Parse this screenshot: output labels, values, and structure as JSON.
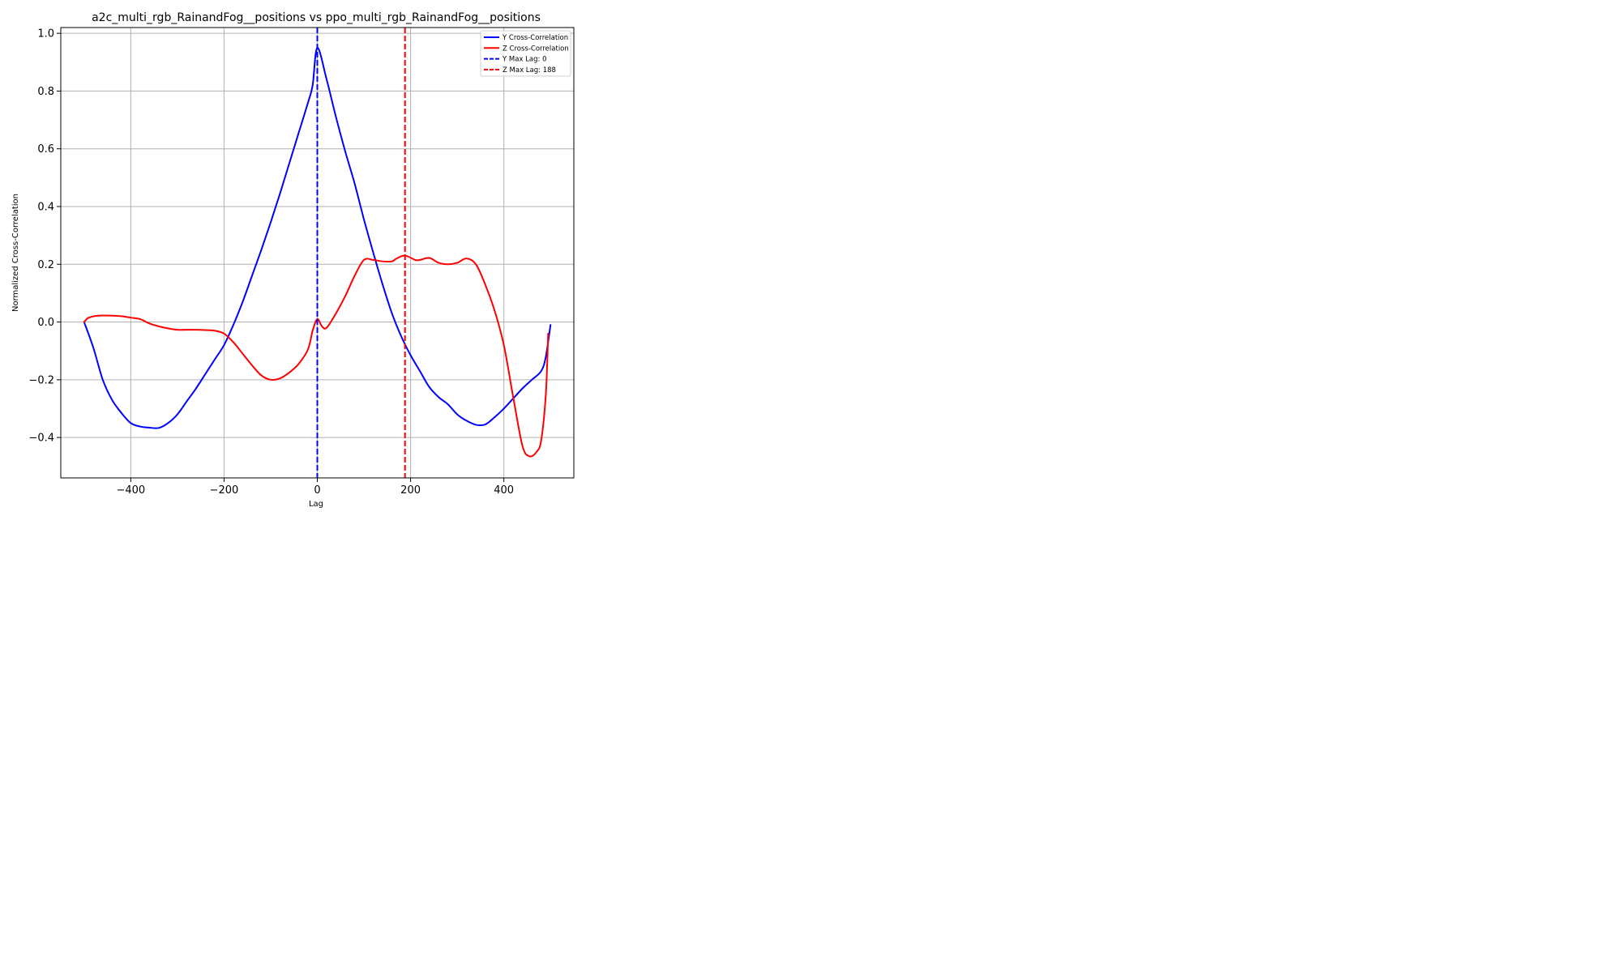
{
  "chart_data": {
    "type": "line",
    "title": "a2c_multi_rgb_RainandFog__positions vs ppo_multi_rgb_RainandFog__positions",
    "xlabel": "Lag",
    "ylabel": "Normalized Cross-Correlation",
    "xlim": [
      -550,
      550
    ],
    "ylim": [
      -0.54,
      1.02
    ],
    "xticks": [
      -400,
      -200,
      0,
      200,
      400
    ],
    "xtick_labels": [
      "−400",
      "−200",
      "0",
      "200",
      "400"
    ],
    "yticks": [
      -0.4,
      -0.2,
      0.0,
      0.2,
      0.4,
      0.6,
      0.8,
      1.0
    ],
    "ytick_labels": [
      "−0.4",
      "−0.2",
      "0.0",
      "0.2",
      "0.4",
      "0.6",
      "0.8",
      "1.0"
    ],
    "grid": true,
    "legend_position": "top-right",
    "series": [
      {
        "name": "Y Cross-Correlation",
        "color": "#0000ff",
        "style": "solid",
        "points": [
          [
            -500,
            0.0
          ],
          [
            -480,
            -0.09
          ],
          [
            -460,
            -0.2
          ],
          [
            -440,
            -0.27
          ],
          [
            -420,
            -0.315
          ],
          [
            -400,
            -0.35
          ],
          [
            -380,
            -0.362
          ],
          [
            -360,
            -0.366
          ],
          [
            -340,
            -0.367
          ],
          [
            -320,
            -0.35
          ],
          [
            -300,
            -0.32
          ],
          [
            -280,
            -0.275
          ],
          [
            -260,
            -0.23
          ],
          [
            -240,
            -0.18
          ],
          [
            -220,
            -0.13
          ],
          [
            -200,
            -0.08
          ],
          [
            -180,
            -0.01
          ],
          [
            -160,
            0.07
          ],
          [
            -140,
            0.16
          ],
          [
            -120,
            0.25
          ],
          [
            -100,
            0.345
          ],
          [
            -80,
            0.445
          ],
          [
            -60,
            0.55
          ],
          [
            -40,
            0.655
          ],
          [
            -20,
            0.76
          ],
          [
            -10,
            0.82
          ],
          [
            0,
            0.95
          ],
          [
            20,
            0.84
          ],
          [
            40,
            0.71
          ],
          [
            60,
            0.59
          ],
          [
            80,
            0.48
          ],
          [
            100,
            0.355
          ],
          [
            120,
            0.24
          ],
          [
            140,
            0.13
          ],
          [
            160,
            0.03
          ],
          [
            180,
            -0.05
          ],
          [
            200,
            -0.115
          ],
          [
            220,
            -0.17
          ],
          [
            240,
            -0.225
          ],
          [
            260,
            -0.26
          ],
          [
            280,
            -0.285
          ],
          [
            300,
            -0.32
          ],
          [
            320,
            -0.342
          ],
          [
            340,
            -0.356
          ],
          [
            360,
            -0.355
          ],
          [
            380,
            -0.33
          ],
          [
            400,
            -0.3
          ],
          [
            420,
            -0.265
          ],
          [
            440,
            -0.23
          ],
          [
            460,
            -0.2
          ],
          [
            480,
            -0.17
          ],
          [
            490,
            -0.12
          ],
          [
            500,
            -0.01
          ]
        ]
      },
      {
        "name": "Z Cross-Correlation",
        "color": "#ff0000",
        "style": "solid",
        "points": [
          [
            -500,
            0.0
          ],
          [
            -490,
            0.015
          ],
          [
            -470,
            0.022
          ],
          [
            -440,
            0.022
          ],
          [
            -420,
            0.02
          ],
          [
            -400,
            0.015
          ],
          [
            -380,
            0.01
          ],
          [
            -360,
            -0.005
          ],
          [
            -340,
            -0.015
          ],
          [
            -320,
            -0.022
          ],
          [
            -300,
            -0.027
          ],
          [
            -280,
            -0.027
          ],
          [
            -260,
            -0.027
          ],
          [
            -240,
            -0.028
          ],
          [
            -220,
            -0.03
          ],
          [
            -200,
            -0.04
          ],
          [
            -180,
            -0.07
          ],
          [
            -160,
            -0.11
          ],
          [
            -140,
            -0.15
          ],
          [
            -120,
            -0.185
          ],
          [
            -100,
            -0.2
          ],
          [
            -80,
            -0.195
          ],
          [
            -60,
            -0.175
          ],
          [
            -40,
            -0.145
          ],
          [
            -20,
            -0.095
          ],
          [
            -10,
            -0.03
          ],
          [
            0,
            0.01
          ],
          [
            10,
            -0.015
          ],
          [
            20,
            -0.02
          ],
          [
            40,
            0.03
          ],
          [
            60,
            0.09
          ],
          [
            80,
            0.16
          ],
          [
            100,
            0.215
          ],
          [
            120,
            0.215
          ],
          [
            140,
            0.21
          ],
          [
            160,
            0.21
          ],
          [
            170,
            0.22
          ],
          [
            188,
            0.23
          ],
          [
            210,
            0.215
          ],
          [
            220,
            0.215
          ],
          [
            240,
            0.222
          ],
          [
            260,
            0.205
          ],
          [
            280,
            0.2
          ],
          [
            300,
            0.205
          ],
          [
            320,
            0.22
          ],
          [
            340,
            0.2
          ],
          [
            360,
            0.13
          ],
          [
            380,
            0.04
          ],
          [
            400,
            -0.08
          ],
          [
            420,
            -0.26
          ],
          [
            440,
            -0.43
          ],
          [
            455,
            -0.465
          ],
          [
            470,
            -0.45
          ],
          [
            480,
            -0.41
          ],
          [
            490,
            -0.25
          ],
          [
            495,
            -0.04
          ]
        ]
      },
      {
        "name": "Y Max Lag: 0",
        "color": "#0000ff",
        "style": "dashed",
        "vline": 0
      },
      {
        "name": "Z Max Lag: 188",
        "color": "#ff0000",
        "style": "dashed",
        "vline": 188
      }
    ]
  }
}
